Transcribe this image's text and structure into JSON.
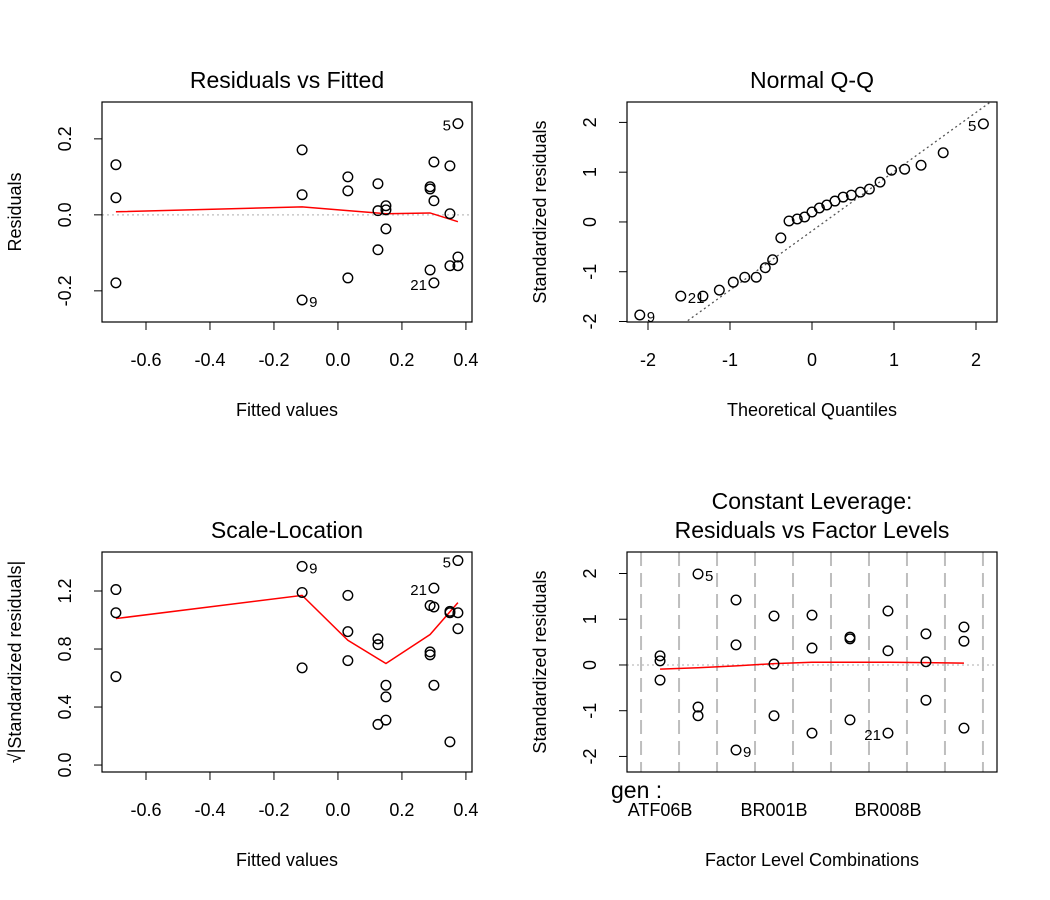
{
  "chart_data": [
    {
      "type": "scatter",
      "title": [
        "Residuals vs Fitted"
      ],
      "xlabel": "Fitted values",
      "ylabel": "Residuals",
      "xlim": [
        -0.7375,
        0.419
      ],
      "ylim": [
        -0.282,
        0.297
      ],
      "xticks": [
        -0.6,
        -0.4,
        -0.2,
        {
          "value": 0,
          "label": "0.0"
        },
        0.2,
        0.4
      ],
      "yticks": [
        -0.2,
        {
          "value": 0,
          "label": "0.0"
        },
        0.2
      ],
      "x": [
        -0.694,
        -0.694,
        -0.694,
        -0.112,
        -0.112,
        -0.112,
        0.031,
        0.031,
        0.031,
        0.125,
        0.125,
        0.125,
        0.15,
        0.15,
        0.15,
        0.288,
        0.288,
        0.288,
        0.3,
        0.3,
        0.3,
        0.35,
        0.35,
        0.35,
        0.375,
        0.375,
        0.375
      ],
      "values": [
        0.132,
        0.045,
        -0.179,
        0.171,
        0.053,
        -0.224,
        0.1,
        0.063,
        -0.166,
        0.082,
        0.011,
        -0.092,
        0.024,
        0.013,
        -0.037,
        0.074,
        0.068,
        -0.145,
        0.139,
        0.037,
        -0.179,
        0.129,
        0.003,
        -0.134,
        0.24,
        -0.111,
        -0.134
      ],
      "point_labels": [
        null,
        null,
        null,
        null,
        null,
        "9",
        null,
        null,
        null,
        null,
        null,
        null,
        null,
        null,
        null,
        null,
        null,
        null,
        null,
        null,
        "21",
        null,
        null,
        null,
        "5",
        null,
        null
      ],
      "color": "#000000",
      "smooth": {
        "x": [
          -0.694,
          -0.112,
          0.031,
          0.15,
          0.288,
          0.375
        ],
        "values": [
          0.008,
          0.021,
          0.011,
          0.003,
          0.005,
          -0.018
        ],
        "color": "#ff0000"
      },
      "hline": {
        "value": 0,
        "color": "#bdbdbd"
      }
    },
    {
      "type": "scatter",
      "title": [
        "Normal Q-Q"
      ],
      "xlabel": "Theoretical Quantiles",
      "ylabel": "Standardized residuals",
      "xlim": [
        -2.256,
        2.256
      ],
      "ylim": [
        -2.01,
        2.41
      ],
      "xticks": [
        -2,
        -1,
        0,
        1,
        2
      ],
      "yticks": [
        -2,
        -1,
        0,
        1,
        2
      ],
      "x": [
        -2.1,
        -1.6,
        -1.33,
        -1.13,
        -0.96,
        -0.82,
        -0.68,
        -0.57,
        -0.48,
        -0.38,
        -0.28,
        -0.18,
        -0.09,
        0,
        0.09,
        0.18,
        0.28,
        0.38,
        0.48,
        0.59,
        0.7,
        0.83,
        0.97,
        1.13,
        1.33,
        1.6,
        2.09
      ],
      "values": [
        -1.87,
        -1.49,
        -1.49,
        -1.37,
        -1.21,
        -1.11,
        -1.11,
        -0.92,
        -0.76,
        -0.32,
        0.02,
        0.06,
        0.1,
        0.2,
        0.28,
        0.34,
        0.42,
        0.5,
        0.54,
        0.6,
        0.66,
        0.8,
        1.04,
        1.06,
        1.14,
        1.39,
        1.97
      ],
      "point_labels": [
        "9",
        "21",
        null,
        null,
        null,
        null,
        null,
        null,
        null,
        null,
        null,
        null,
        null,
        null,
        null,
        null,
        null,
        null,
        null,
        null,
        null,
        null,
        null,
        null,
        null,
        null,
        "5"
      ],
      "color": "#000000",
      "refline": {
        "slope": 1.19,
        "intercept": -0.18,
        "color": "#555555"
      }
    },
    {
      "type": "scatter",
      "title": [
        "Scale-Location"
      ],
      "xlabel": "Fitted values",
      "ylabel": "√|Standardized residuals|",
      "xlim": [
        -0.7375,
        0.419
      ],
      "ylim": [
        -0.048,
        1.469
      ],
      "xticks": [
        -0.6,
        -0.4,
        -0.2,
        {
          "value": 0,
          "label": "0.0"
        },
        0.2,
        0.4
      ],
      "yticks": [
        {
          "value": 0,
          "label": "0.0"
        },
        0.4,
        0.8,
        1.2
      ],
      "x": [
        -0.694,
        -0.694,
        -0.694,
        -0.112,
        -0.112,
        -0.112,
        0.031,
        0.031,
        0.031,
        0.125,
        0.125,
        0.125,
        0.15,
        0.15,
        0.15,
        0.288,
        0.288,
        0.288,
        0.3,
        0.3,
        0.3,
        0.35,
        0.35,
        0.35,
        0.375,
        0.375,
        0.375
      ],
      "values": [
        1.21,
        1.05,
        0.61,
        1.37,
        1.19,
        0.67,
        1.17,
        0.92,
        0.72,
        0.87,
        0.83,
        0.28,
        0.55,
        0.47,
        0.31,
        1.1,
        0.78,
        0.76,
        1.22,
        1.09,
        0.55,
        1.06,
        1.05,
        0.16,
        1.41,
        1.05,
        0.94
      ],
      "point_labels": [
        null,
        null,
        null,
        "9",
        null,
        null,
        null,
        null,
        null,
        null,
        null,
        null,
        null,
        null,
        null,
        null,
        null,
        null,
        "21",
        null,
        null,
        null,
        null,
        null,
        "5",
        null,
        null
      ],
      "color": "#000000",
      "smooth": {
        "x": [
          -0.694,
          -0.112,
          0.031,
          0.15,
          0.288,
          0.375
        ],
        "values": [
          1.01,
          1.17,
          0.86,
          0.7,
          0.9,
          1.12
        ],
        "color": "#ff0000"
      }
    },
    {
      "type": "scatter",
      "title": [
        "Constant Leverage:",
        "Residuals vs Factor Levels"
      ],
      "xlabel": "Factor Level Combinations",
      "ylabel": "Standardized residuals",
      "factor_name": "gen :",
      "categories": [
        "ATF06B",
        null,
        null,
        "BR001B",
        null,
        null,
        "BR008B",
        null,
        null
      ],
      "xlim": [
        0.13,
        9.87
      ],
      "ylim": [
        -2.34,
        2.47
      ],
      "yticks": [
        -2,
        -1,
        0,
        1,
        2
      ],
      "x": [
        1,
        1,
        1,
        2,
        2,
        2,
        3,
        3,
        3,
        4,
        4,
        4,
        5,
        5,
        5,
        6,
        6,
        6,
        7,
        7,
        7,
        8,
        8,
        8,
        9,
        9,
        9
      ],
      "values": [
        0.2,
        0.09,
        -0.33,
        1.99,
        -0.92,
        -1.11,
        1.42,
        0.44,
        -1.86,
        1.07,
        0.02,
        -1.11,
        1.09,
        0.37,
        -1.49,
        0.61,
        0.57,
        -1.2,
        1.18,
        0.31,
        -1.49,
        0.68,
        0.07,
        -0.77,
        0.83,
        0.52,
        -1.38
      ],
      "point_labels": [
        null,
        null,
        null,
        "5",
        null,
        null,
        null,
        null,
        "9",
        null,
        null,
        null,
        null,
        null,
        null,
        null,
        null,
        null,
        null,
        null,
        "21",
        null,
        null,
        null,
        null,
        null,
        null
      ],
      "color": "#000000",
      "smooth": {
        "x": [
          1,
          2,
          3,
          4,
          5,
          6,
          7,
          8,
          9
        ],
        "values": [
          -0.09,
          -0.06,
          -0.02,
          0.03,
          0.06,
          0.06,
          0.06,
          0.05,
          0.04
        ],
        "color": "#ff0000"
      },
      "hline": {
        "value": 0,
        "color": "#bdbdbd"
      }
    }
  ]
}
